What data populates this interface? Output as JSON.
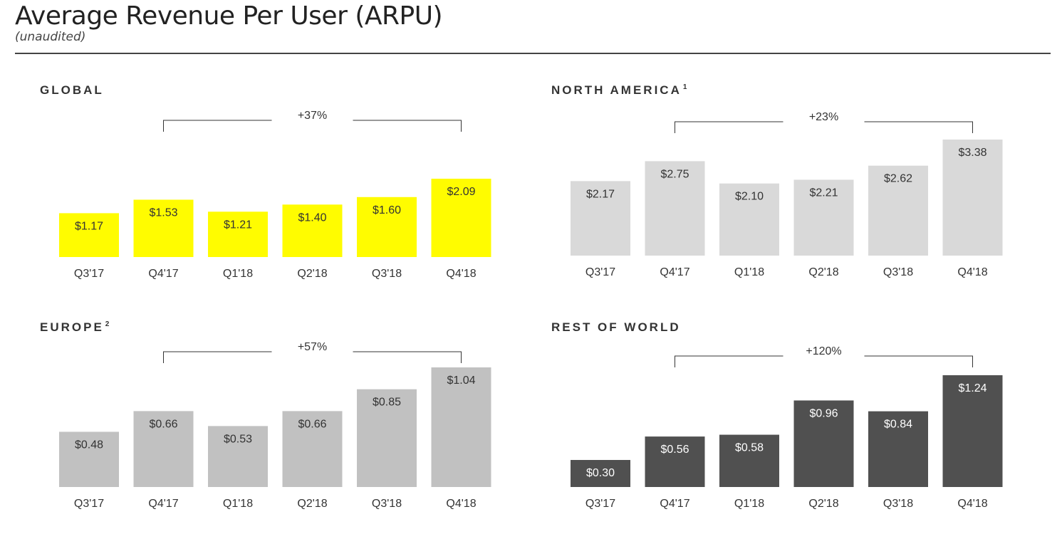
{
  "header": {
    "title": "Average Revenue Per User (ARPU)",
    "subtitle": "(unaudited)"
  },
  "colors": {
    "global": "#fffc00",
    "north_america": "#d9d9d9",
    "europe": "#c1c1c1",
    "rest_of_world": "#505050"
  },
  "chart_data": [
    {
      "type": "bar",
      "title": "GLOBAL",
      "title_sup": "",
      "categories": [
        "Q3'17",
        "Q4'17",
        "Q1'18",
        "Q2'18",
        "Q3'18",
        "Q4'18"
      ],
      "values": [
        1.17,
        1.53,
        1.21,
        1.4,
        1.6,
        2.09
      ],
      "labels": [
        "$1.17",
        "$1.53",
        "$1.21",
        "$1.40",
        "$1.60",
        "$2.09"
      ],
      "growth": "+37%",
      "bar_color": "#fffc00",
      "label_color": "#333333"
    },
    {
      "type": "bar",
      "title": "NORTH AMERICA",
      "title_sup": "1",
      "categories": [
        "Q3'17",
        "Q4'17",
        "Q1'18",
        "Q2'18",
        "Q3'18",
        "Q4'18"
      ],
      "values": [
        2.17,
        2.75,
        2.1,
        2.21,
        2.62,
        3.38
      ],
      "labels": [
        "$2.17",
        "$2.75",
        "$2.10",
        "$2.21",
        "$2.62",
        "$3.38"
      ],
      "growth": "+23%",
      "bar_color": "#d9d9d9",
      "label_color": "#333333"
    },
    {
      "type": "bar",
      "title": "EUROPE",
      "title_sup": "2",
      "categories": [
        "Q3'17",
        "Q4'17",
        "Q1'18",
        "Q2'18",
        "Q3'18",
        "Q4'18"
      ],
      "values": [
        0.48,
        0.66,
        0.53,
        0.66,
        0.85,
        1.04
      ],
      "labels": [
        "$0.48",
        "$0.66",
        "$0.53",
        "$0.66",
        "$0.85",
        "$1.04"
      ],
      "growth": "+57%",
      "bar_color": "#c1c1c1",
      "label_color": "#333333"
    },
    {
      "type": "bar",
      "title": "REST OF WORLD",
      "title_sup": "",
      "categories": [
        "Q3'17",
        "Q4'17",
        "Q1'18",
        "Q2'18",
        "Q3'18",
        "Q4'18"
      ],
      "values": [
        0.3,
        0.56,
        0.58,
        0.96,
        0.84,
        1.24
      ],
      "labels": [
        "$0.30",
        "$0.56",
        "$0.58",
        "$0.96",
        "$0.84",
        "$1.24"
      ],
      "growth": "+120%",
      "bar_color": "#505050",
      "label_color": "#ffffff"
    }
  ]
}
